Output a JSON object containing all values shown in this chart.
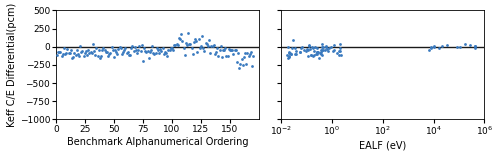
{
  "left_xlabel": "Benchmark Alphanumerical Ordering",
  "left_ylabel": "Keff C/E Differential(pcm)",
  "right_xlabel": "EALF (eV)",
  "right_ylabel": "",
  "ylim": [
    -1000,
    500
  ],
  "yticks": [
    -1000,
    -750,
    -500,
    -250,
    0,
    250,
    500
  ],
  "left_xlim": [
    0,
    175
  ],
  "left_xticks": [
    0,
    25,
    50,
    75,
    100,
    125,
    150
  ],
  "hline_y": 0,
  "point_color": "#3a7abf",
  "line_color": "#1a1a1a",
  "point_size": 4,
  "line_width": 1.0,
  "background_color": "#ffffff",
  "font_size": 7,
  "seed": 42
}
